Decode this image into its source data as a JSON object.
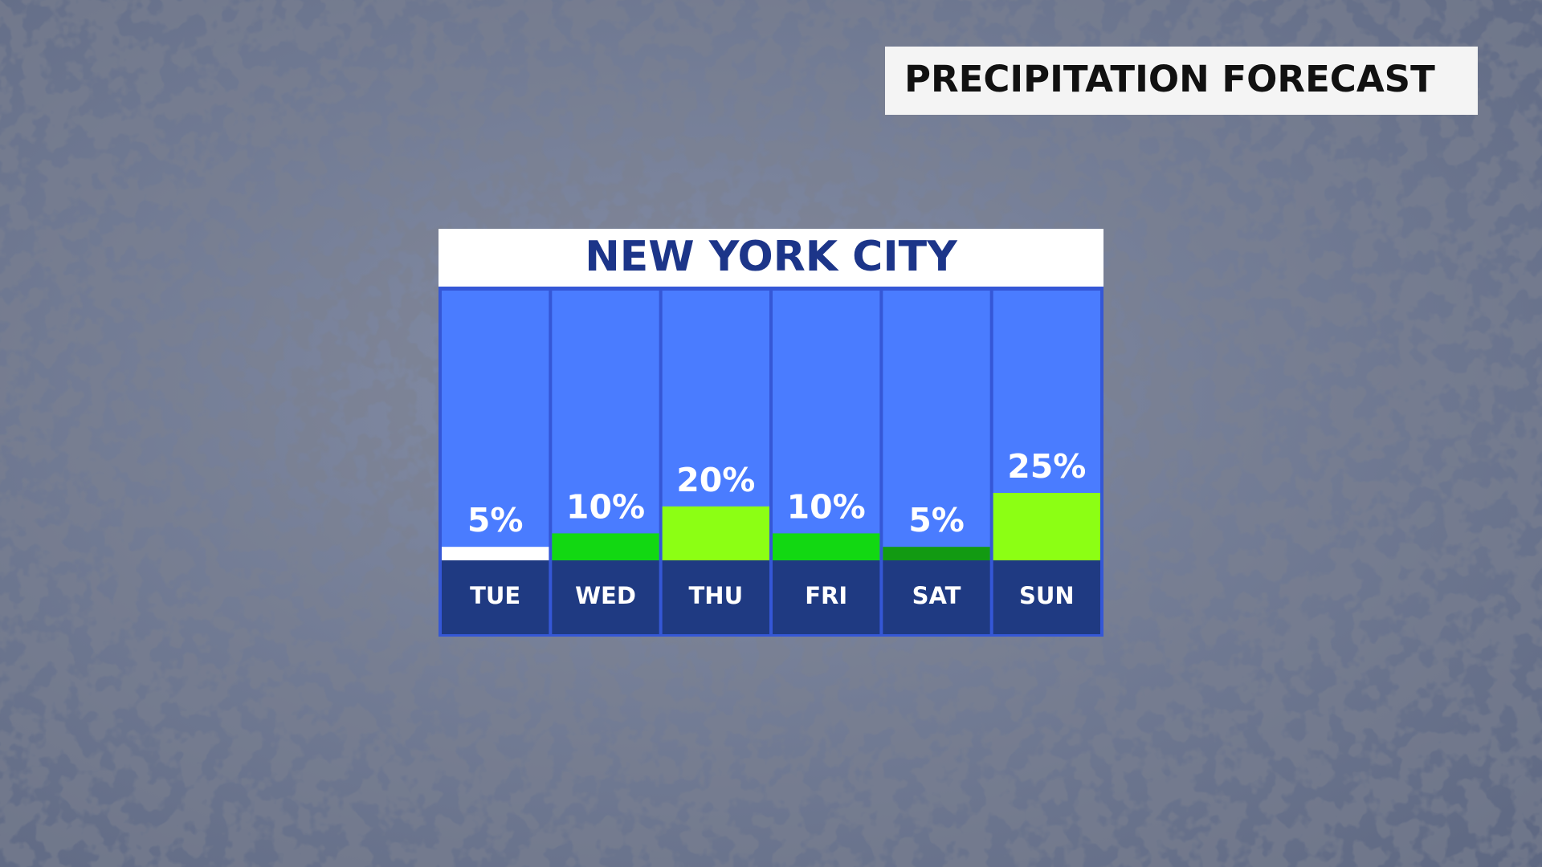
{
  "chart_data": {
    "type": "bar",
    "title": "PRECIPITATION FORECAST",
    "subtitle": "NEW YORK CITY",
    "categories": [
      "TUE",
      "WED",
      "THU",
      "FRI",
      "SAT",
      "SUN"
    ],
    "values": [
      5,
      10,
      20,
      10,
      5,
      25
    ],
    "value_labels": [
      "5%",
      "10%",
      "20%",
      "10%",
      "5%",
      "25%"
    ],
    "colors": [
      "#ffffff",
      "#12d812",
      "#8cff14",
      "#12d812",
      "#129a12",
      "#8cff14"
    ],
    "ylim": [
      0,
      100
    ]
  }
}
